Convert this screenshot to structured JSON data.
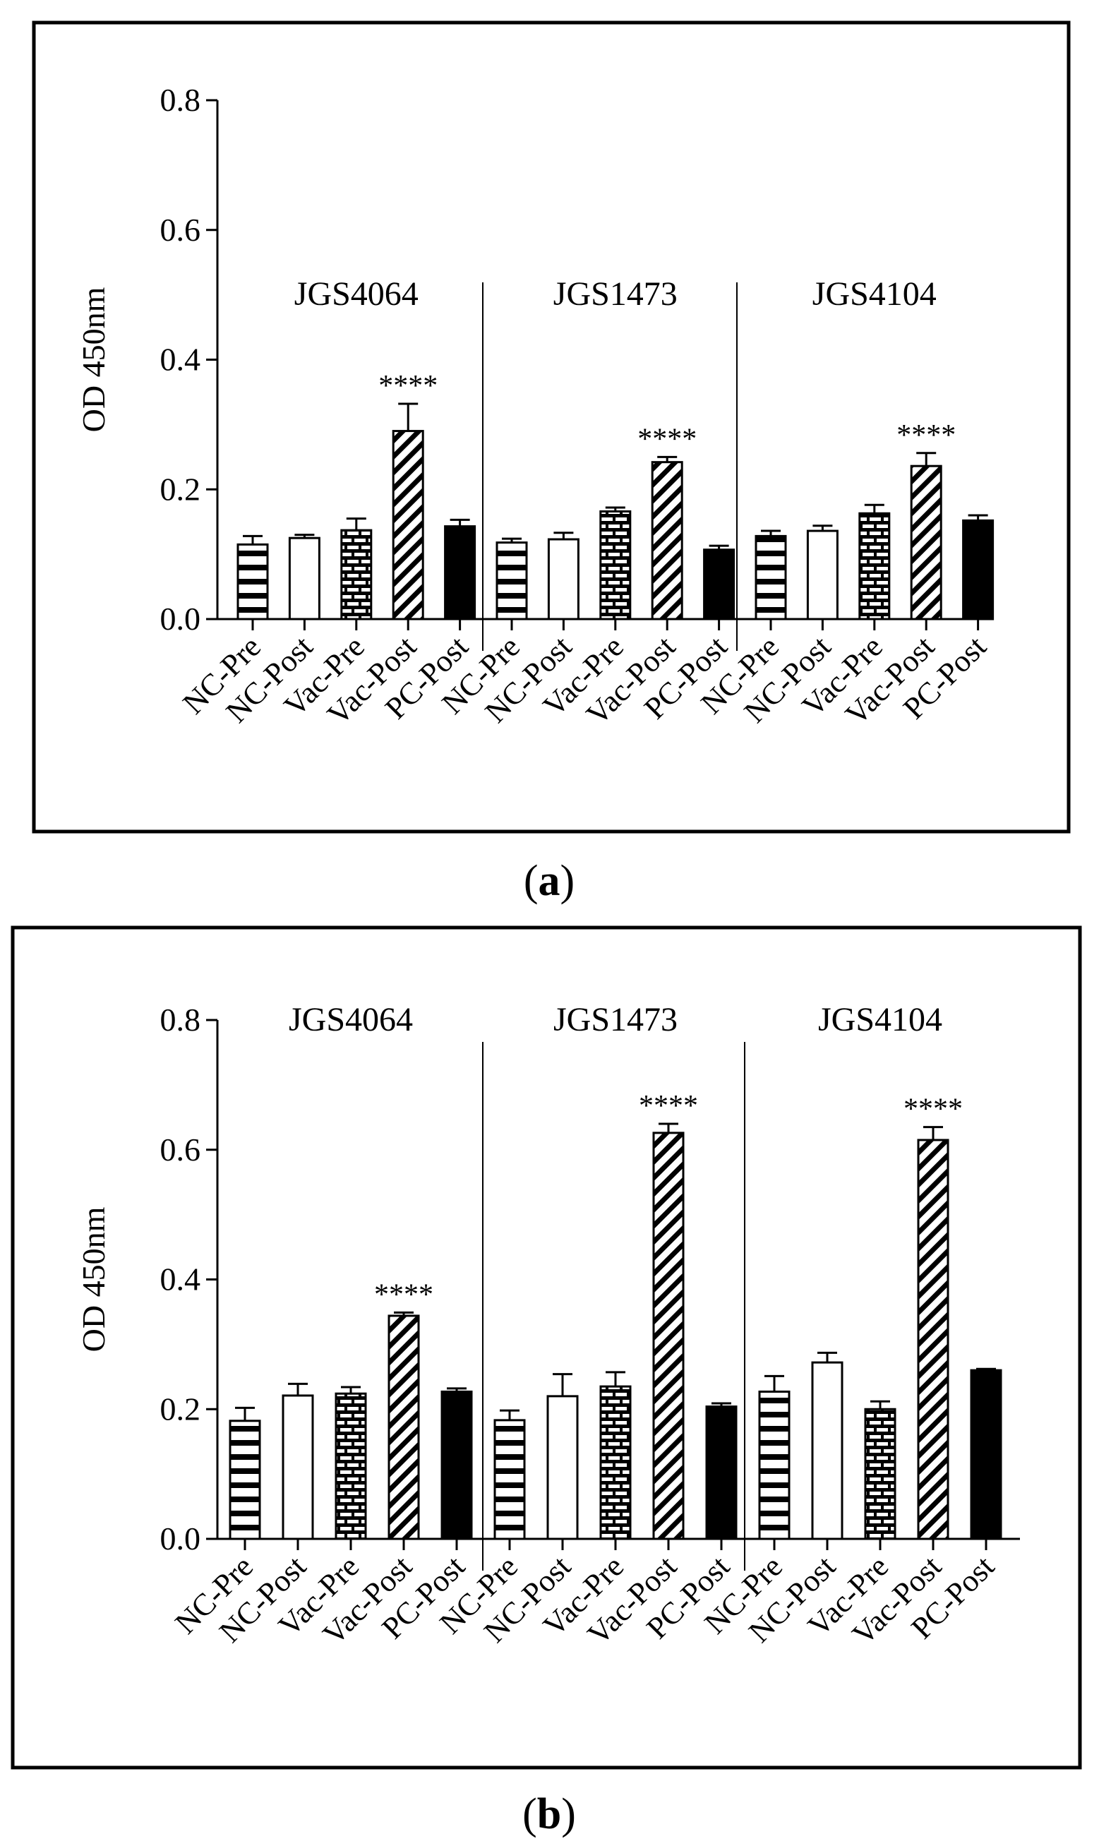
{
  "chart_data": [
    {
      "type": "bar",
      "panel_label": "(a)",
      "panel_letter": "a",
      "ylabel": "OD 450nm",
      "ylim": [
        0,
        0.8
      ],
      "yticks": [
        "0.0",
        "0.2",
        "0.4",
        "0.6",
        "0.8"
      ],
      "legend": "none",
      "groups": [
        {
          "name": "JGS4064",
          "bars": [
            {
              "category": "NC-Pre",
              "pattern": "horizontal",
              "value": 0.115,
              "error": 0.013,
              "sig": ""
            },
            {
              "category": "NC-Post",
              "pattern": "open",
              "value": 0.125,
              "error": 0.005,
              "sig": ""
            },
            {
              "category": "Vac-Pre",
              "pattern": "brick",
              "value": 0.137,
              "error": 0.018,
              "sig": ""
            },
            {
              "category": "Vac-Post",
              "pattern": "diagonal",
              "value": 0.29,
              "error": 0.042,
              "sig": "****"
            },
            {
              "category": "PC-Post",
              "pattern": "solid",
              "value": 0.143,
              "error": 0.01,
              "sig": ""
            }
          ]
        },
        {
          "name": "JGS1473",
          "bars": [
            {
              "category": "NC-Pre",
              "pattern": "horizontal",
              "value": 0.118,
              "error": 0.006,
              "sig": ""
            },
            {
              "category": "NC-Post",
              "pattern": "open",
              "value": 0.123,
              "error": 0.01,
              "sig": ""
            },
            {
              "category": "Vac-Pre",
              "pattern": "brick",
              "value": 0.166,
              "error": 0.006,
              "sig": ""
            },
            {
              "category": "Vac-Post",
              "pattern": "diagonal",
              "value": 0.242,
              "error": 0.008,
              "sig": "****"
            },
            {
              "category": "PC-Post",
              "pattern": "solid",
              "value": 0.107,
              "error": 0.006,
              "sig": ""
            }
          ]
        },
        {
          "name": "JGS4104",
          "bars": [
            {
              "category": "NC-Pre",
              "pattern": "horizontal",
              "value": 0.128,
              "error": 0.008,
              "sig": ""
            },
            {
              "category": "NC-Post",
              "pattern": "open",
              "value": 0.136,
              "error": 0.008,
              "sig": ""
            },
            {
              "category": "Vac-Pre",
              "pattern": "brick",
              "value": 0.163,
              "error": 0.013,
              "sig": ""
            },
            {
              "category": "Vac-Post",
              "pattern": "diagonal",
              "value": 0.236,
              "error": 0.02,
              "sig": "****"
            },
            {
              "category": "PC-Post",
              "pattern": "solid",
              "value": 0.152,
              "error": 0.008,
              "sig": ""
            }
          ]
        }
      ]
    },
    {
      "type": "bar",
      "panel_label": "(b)",
      "panel_letter": "b",
      "ylabel": "OD 450nm",
      "ylim": [
        0,
        0.8
      ],
      "yticks": [
        "0.0",
        "0.2",
        "0.4",
        "0.6",
        "0.8"
      ],
      "legend": "none",
      "groups": [
        {
          "name": "JGS4064",
          "bars": [
            {
              "category": "NC-Pre",
              "pattern": "horizontal",
              "value": 0.182,
              "error": 0.02,
              "sig": ""
            },
            {
              "category": "NC-Post",
              "pattern": "open",
              "value": 0.221,
              "error": 0.018,
              "sig": ""
            },
            {
              "category": "Vac-Pre",
              "pattern": "brick",
              "value": 0.224,
              "error": 0.01,
              "sig": ""
            },
            {
              "category": "Vac-Post",
              "pattern": "diagonal",
              "value": 0.344,
              "error": 0.005,
              "sig": "****"
            },
            {
              "category": "PC-Post",
              "pattern": "solid",
              "value": 0.227,
              "error": 0.005,
              "sig": ""
            }
          ]
        },
        {
          "name": "JGS1473",
          "bars": [
            {
              "category": "NC-Pre",
              "pattern": "horizontal",
              "value": 0.183,
              "error": 0.015,
              "sig": ""
            },
            {
              "category": "NC-Post",
              "pattern": "open",
              "value": 0.22,
              "error": 0.034,
              "sig": ""
            },
            {
              "category": "Vac-Pre",
              "pattern": "brick",
              "value": 0.235,
              "error": 0.022,
              "sig": ""
            },
            {
              "category": "Vac-Post",
              "pattern": "diagonal",
              "value": 0.626,
              "error": 0.014,
              "sig": "****"
            },
            {
              "category": "PC-Post",
              "pattern": "solid",
              "value": 0.204,
              "error": 0.005,
              "sig": ""
            }
          ]
        },
        {
          "name": "JGS4104",
          "bars": [
            {
              "category": "NC-Pre",
              "pattern": "horizontal",
              "value": 0.227,
              "error": 0.024,
              "sig": ""
            },
            {
              "category": "NC-Post",
              "pattern": "open",
              "value": 0.272,
              "error": 0.015,
              "sig": ""
            },
            {
              "category": "Vac-Pre",
              "pattern": "brick",
              "value": 0.2,
              "error": 0.012,
              "sig": ""
            },
            {
              "category": "Vac-Post",
              "pattern": "diagonal",
              "value": 0.615,
              "error": 0.02,
              "sig": "****"
            },
            {
              "category": "PC-Post",
              "pattern": "solid",
              "value": 0.26,
              "error": 0.002,
              "sig": ""
            }
          ]
        }
      ]
    }
  ]
}
